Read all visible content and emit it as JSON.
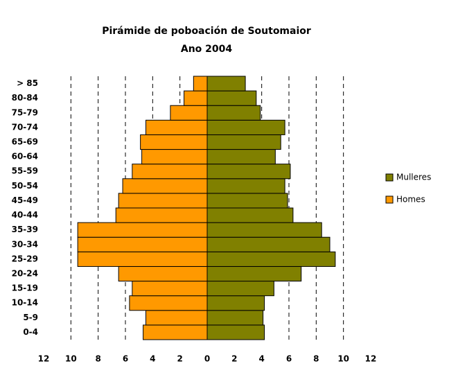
{
  "chart_data": {
    "type": "pyramid",
    "title": "Pirámide de poboación de Soutomaior",
    "subtitle": "Ano 2004",
    "categories": [
      "0-4",
      "5-9",
      "10-14",
      "15-19",
      "20-24",
      "25-29",
      "30-34",
      "35-39",
      "40-44",
      "45-49",
      "50-54",
      "55-59",
      "60-64",
      "65-69",
      "70-74",
      "75-79",
      "80-84",
      "> 85"
    ],
    "series": [
      {
        "name": "Mulleres",
        "color": "#808000",
        "values": [
          4.2,
          4.1,
          4.2,
          4.9,
          6.9,
          9.4,
          9.0,
          8.4,
          6.3,
          5.9,
          5.7,
          6.1,
          5.0,
          5.4,
          5.7,
          3.9,
          3.6,
          2.8
        ]
      },
      {
        "name": "Homes",
        "color": "#ff9900",
        "values": [
          -4.7,
          -4.5,
          -5.7,
          -5.5,
          -6.5,
          -9.5,
          -9.5,
          -9.5,
          -6.7,
          -6.5,
          -6.2,
          -5.5,
          -4.8,
          -4.9,
          -4.5,
          -2.7,
          -1.7,
          -1.0
        ]
      }
    ],
    "xlim": [
      -12,
      12
    ],
    "xticks": [
      {
        "value": -12,
        "label": "12"
      },
      {
        "value": -10,
        "label": "10"
      },
      {
        "value": -8,
        "label": "8"
      },
      {
        "value": -6,
        "label": "6"
      },
      {
        "value": -4,
        "label": "4"
      },
      {
        "value": -2,
        "label": "2"
      },
      0,
      2,
      4,
      6,
      8,
      10,
      12
    ],
    "grid": true,
    "legend": "right"
  }
}
